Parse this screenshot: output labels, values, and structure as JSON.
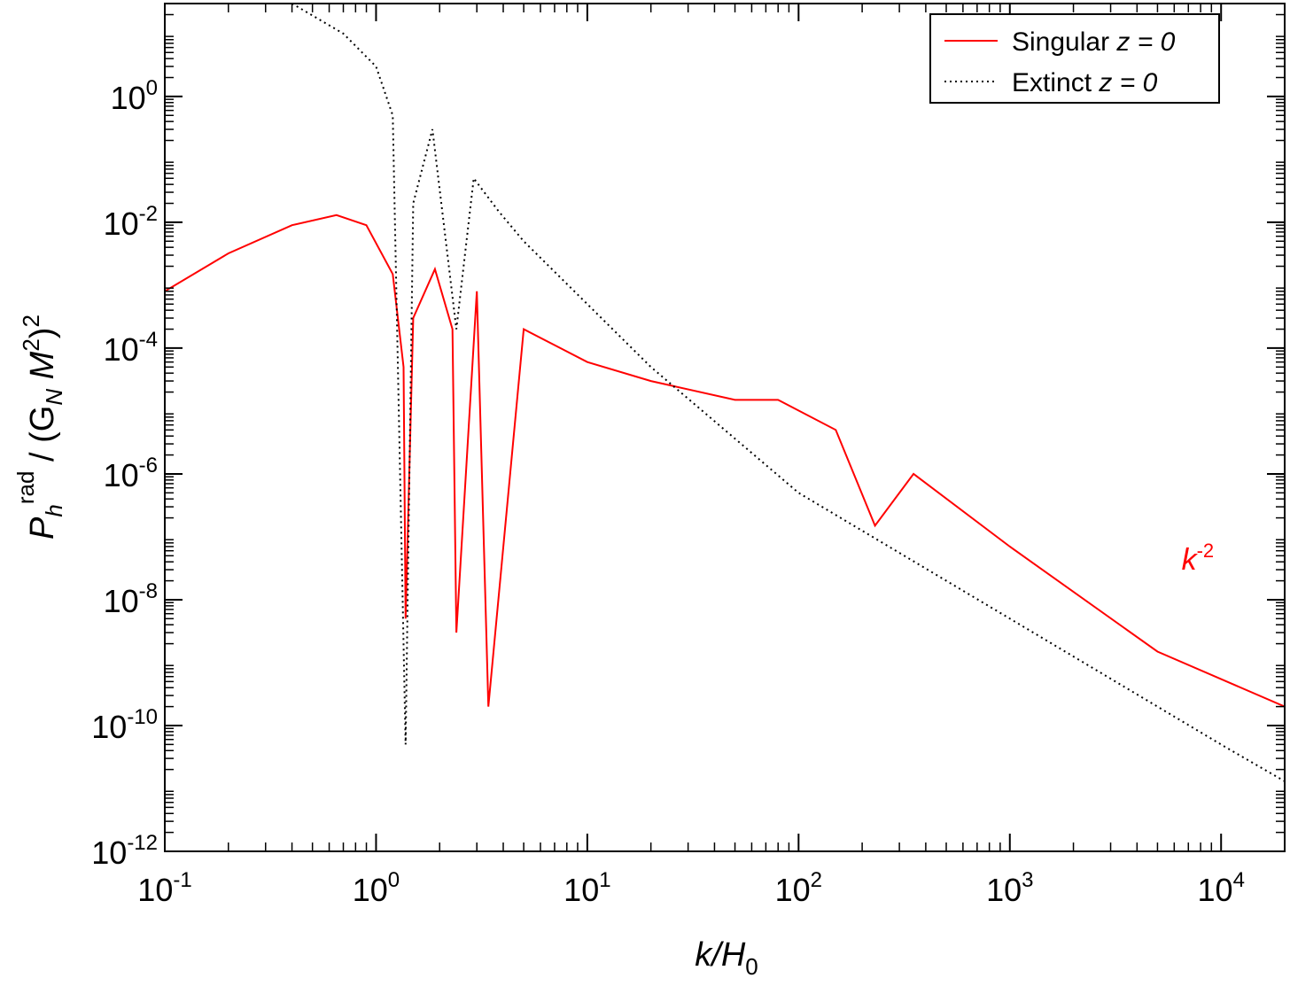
{
  "chart_data": {
    "type": "line",
    "xscale": "log",
    "yscale": "log",
    "xlim": [
      0.1,
      20000
    ],
    "ylim": [
      1e-12,
      30
    ],
    "xlabel": {
      "main": "k/H",
      "sub": "0"
    },
    "ylabel": {
      "main": "P",
      "sub": "h",
      "sup": "rad",
      "rest": " / (G",
      "sub2": "N",
      "rest2": " M",
      "sup2": "2",
      "rest3": ")",
      "sup3": "2"
    },
    "x_ticks": [
      {
        "base": "10",
        "exp": "-1",
        "value": 0.1
      },
      {
        "base": "10",
        "exp": "0",
        "value": 1
      },
      {
        "base": "10",
        "exp": "1",
        "value": 10
      },
      {
        "base": "10",
        "exp": "2",
        "value": 100
      },
      {
        "base": "10",
        "exp": "3",
        "value": 1000
      },
      {
        "base": "10",
        "exp": "4",
        "value": 10000
      }
    ],
    "y_ticks": [
      {
        "base": "10",
        "exp": "0",
        "value": 1
      },
      {
        "base": "10",
        "exp": "-2",
        "value": 0.01
      },
      {
        "base": "10",
        "exp": "-4",
        "value": 0.0001
      },
      {
        "base": "10",
        "exp": "-6",
        "value": 1e-06
      },
      {
        "base": "10",
        "exp": "-8",
        "value": 1e-08
      },
      {
        "base": "10",
        "exp": "-10",
        "value": 1e-10
      },
      {
        "base": "10",
        "exp": "-12",
        "value": 1e-12
      }
    ],
    "grid": false,
    "legend_position": "top-right",
    "series": [
      {
        "name_text": "Singular ",
        "name_italic": "z = 0",
        "color": "#ff0000",
        "style": "solid",
        "x": [
          0.1,
          0.2,
          0.4,
          0.65,
          0.9,
          1.2,
          1.35,
          1.38,
          1.5,
          1.9,
          2.3,
          2.4,
          3.0,
          3.4,
          5.0,
          10.0,
          20.0,
          50.0,
          80.0,
          150.0,
          230.0,
          350.0,
          1000.0,
          5000.0,
          20000.0
        ],
        "y": [
          0.0008,
          0.0032,
          0.009,
          0.013,
          0.009,
          0.0015,
          5e-05,
          5e-09,
          0.0003,
          0.0018,
          0.0002,
          3e-09,
          0.0008,
          2e-10,
          0.0002,
          6e-05,
          3e-05,
          1.5e-05,
          1.5e-05,
          5e-06,
          1.5e-07,
          1e-06,
          7e-08,
          1.5e-09,
          2e-10
        ]
      },
      {
        "name_text": "Extinct ",
        "name_italic": "z = 0",
        "color": "#000000",
        "style": "dotted",
        "x": [
          0.4,
          0.7,
          1.0,
          1.2,
          1.38,
          1.5,
          1.85,
          2.4,
          2.9,
          3.8,
          5.0,
          10.0,
          20.0,
          100.0,
          1000.0,
          10000.0,
          20000.0
        ],
        "y": [
          30,
          10,
          3,
          0.5,
          5e-11,
          0.02,
          0.3,
          0.0002,
          0.05,
          0.015,
          0.005,
          0.0005,
          5e-05,
          5e-07,
          5e-09,
          5e-11,
          1.3e-11
        ]
      }
    ],
    "annotation": {
      "main": "k",
      "sup": "-2",
      "x": 6500,
      "y": 3e-08,
      "color": "#ff0000"
    }
  }
}
